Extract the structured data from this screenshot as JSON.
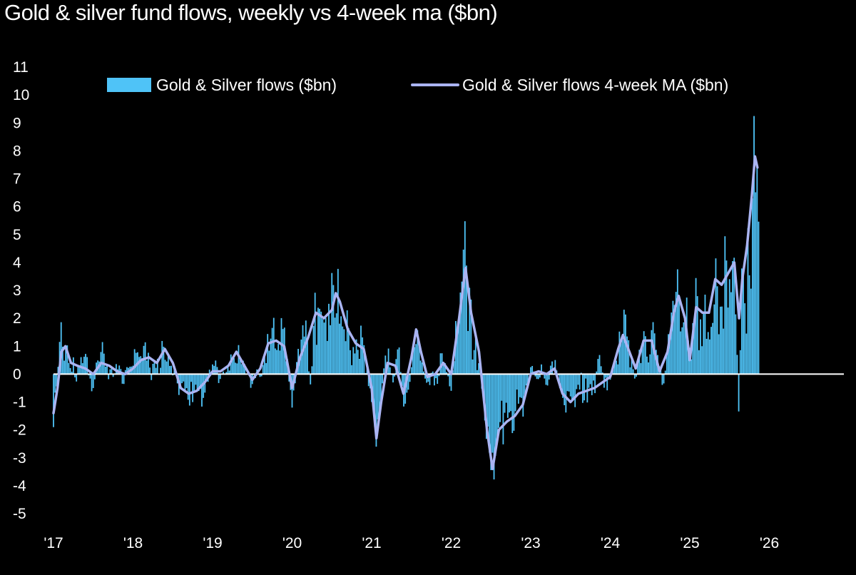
{
  "chart_data": {
    "type": "bar",
    "title": "Gold & silver fund flows, weekly vs 4-week ma ($bn)",
    "xlabel": "",
    "ylabel": "",
    "ylim": [
      -5,
      11
    ],
    "y_ticks": [
      11,
      10,
      9,
      8,
      7,
      6,
      5,
      4,
      3,
      2,
      1,
      0,
      -1,
      -2,
      -3,
      -4,
      -5
    ],
    "x_range": [
      2017.0,
      2027.0
    ],
    "x_ticks": [
      {
        "label": "'17",
        "value": 2017
      },
      {
        "label": "'18",
        "value": 2018
      },
      {
        "label": "'19",
        "value": 2019
      },
      {
        "label": "'20",
        "value": 2020
      },
      {
        "label": "'21",
        "value": 2021
      },
      {
        "label": "'22",
        "value": 2022
      },
      {
        "label": "'23",
        "value": 2023
      },
      {
        "label": "'24",
        "value": 2024
      },
      {
        "label": "'25",
        "value": 2025
      },
      {
        "label": "'26",
        "value": 2026
      }
    ],
    "legend_position": "top",
    "series": [
      {
        "name": "Gold & Silver flows ($bn)",
        "kind": "bar",
        "color": "#4fc3f7"
      },
      {
        "name": "Gold & Silver flows 4-week MA ($bn)",
        "kind": "line",
        "color": "#aab4f2"
      }
    ],
    "weekly_anchors": [
      [
        2017.0,
        -1.9
      ],
      [
        2017.03,
        -0.8
      ],
      [
        2017.07,
        0.9
      ],
      [
        2017.1,
        2.0
      ],
      [
        2017.13,
        0.4
      ],
      [
        2017.17,
        1.1
      ],
      [
        2017.21,
        0.2
      ],
      [
        2017.25,
        0.6
      ],
      [
        2017.29,
        -0.3
      ],
      [
        2017.33,
        0.3
      ],
      [
        2017.4,
        0.8
      ],
      [
        2017.45,
        -0.2
      ],
      [
        2017.5,
        -0.5
      ],
      [
        2017.55,
        0.4
      ],
      [
        2017.62,
        1.2
      ],
      [
        2017.68,
        0.2
      ],
      [
        2017.75,
        -0.1
      ],
      [
        2017.82,
        0.4
      ],
      [
        2017.88,
        -0.4
      ],
      [
        2017.95,
        0.3
      ],
      [
        2018.02,
        0.9
      ],
      [
        2018.08,
        0.6
      ],
      [
        2018.15,
        1.2
      ],
      [
        2018.22,
        0.1
      ],
      [
        2018.3,
        0.5
      ],
      [
        2018.38,
        1.0
      ],
      [
        2018.45,
        0.7
      ],
      [
        2018.52,
        0.2
      ],
      [
        2018.58,
        -0.8
      ],
      [
        2018.65,
        -0.6
      ],
      [
        2018.72,
        -1.2
      ],
      [
        2018.8,
        -0.5
      ],
      [
        2018.88,
        -0.9
      ],
      [
        2018.95,
        -0.2
      ],
      [
        2019.02,
        0.3
      ],
      [
        2019.1,
        -0.2
      ],
      [
        2019.18,
        0.1
      ],
      [
        2019.25,
        0.5
      ],
      [
        2019.32,
        1.1
      ],
      [
        2019.4,
        0.4
      ],
      [
        2019.48,
        -0.5
      ],
      [
        2019.55,
        0.2
      ],
      [
        2019.62,
        -0.1
      ],
      [
        2019.7,
        1.6
      ],
      [
        2019.76,
        2.2
      ],
      [
        2019.82,
        1.0
      ],
      [
        2019.88,
        1.7
      ],
      [
        2019.94,
        0.6
      ],
      [
        2020.0,
        -1.2
      ],
      [
        2020.06,
        0.5
      ],
      [
        2020.12,
        1.3
      ],
      [
        2020.18,
        2.0
      ],
      [
        2020.24,
        -0.8
      ],
      [
        2020.28,
        3.0
      ],
      [
        2020.34,
        2.4
      ],
      [
        2020.4,
        1.8
      ],
      [
        2020.46,
        2.5
      ],
      [
        2020.52,
        3.2
      ],
      [
        2020.58,
        3.8
      ],
      [
        2020.64,
        1.5
      ],
      [
        2020.7,
        2.4
      ],
      [
        2020.76,
        1.0
      ],
      [
        2020.82,
        0.8
      ],
      [
        2020.88,
        1.4
      ],
      [
        2020.94,
        0.3
      ],
      [
        2021.0,
        -1.0
      ],
      [
        2021.05,
        -2.8
      ],
      [
        2021.1,
        -1.5
      ],
      [
        2021.16,
        0.4
      ],
      [
        2021.22,
        1.0
      ],
      [
        2021.28,
        -0.3
      ],
      [
        2021.34,
        1.2
      ],
      [
        2021.4,
        -1.2
      ],
      [
        2021.46,
        -0.6
      ],
      [
        2021.52,
        1.0
      ],
      [
        2021.58,
        1.6
      ],
      [
        2021.64,
        0.3
      ],
      [
        2021.7,
        -0.4
      ],
      [
        2021.76,
        0.2
      ],
      [
        2021.82,
        -0.5
      ],
      [
        2021.88,
        0.8
      ],
      [
        2021.94,
        0.1
      ],
      [
        2022.0,
        -0.6
      ],
      [
        2022.06,
        2.0
      ],
      [
        2022.12,
        3.0
      ],
      [
        2022.18,
        5.8
      ],
      [
        2022.24,
        2.6
      ],
      [
        2022.3,
        1.6
      ],
      [
        2022.36,
        0.5
      ],
      [
        2022.42,
        -1.6
      ],
      [
        2022.48,
        -2.8
      ],
      [
        2022.54,
        -3.8
      ],
      [
        2022.6,
        -1.8
      ],
      [
        2022.66,
        -2.6
      ],
      [
        2022.72,
        -1.4
      ],
      [
        2022.78,
        -2.2
      ],
      [
        2022.84,
        -1.0
      ],
      [
        2022.9,
        -1.6
      ],
      [
        2022.96,
        -0.4
      ],
      [
        2023.02,
        0.3
      ],
      [
        2023.08,
        -0.2
      ],
      [
        2023.14,
        0.4
      ],
      [
        2023.2,
        -0.5
      ],
      [
        2023.26,
        0.5
      ],
      [
        2023.32,
        0.2
      ],
      [
        2023.38,
        -0.4
      ],
      [
        2023.44,
        -1.4
      ],
      [
        2023.5,
        -0.8
      ],
      [
        2023.56,
        -1.2
      ],
      [
        2023.62,
        -0.5
      ],
      [
        2023.68,
        -1.0
      ],
      [
        2023.74,
        -0.4
      ],
      [
        2023.8,
        -0.9
      ],
      [
        2023.86,
        0.8
      ],
      [
        2023.92,
        -0.5
      ],
      [
        2024.0,
        -0.2
      ],
      [
        2024.06,
        0.6
      ],
      [
        2024.12,
        1.6
      ],
      [
        2024.18,
        2.4
      ],
      [
        2024.24,
        1.0
      ],
      [
        2024.3,
        -0.3
      ],
      [
        2024.36,
        0.8
      ],
      [
        2024.42,
        1.6
      ],
      [
        2024.48,
        0.4
      ],
      [
        2024.54,
        1.9
      ],
      [
        2024.6,
        0.6
      ],
      [
        2024.66,
        -0.5
      ],
      [
        2024.72,
        1.0
      ],
      [
        2024.78,
        2.4
      ],
      [
        2024.84,
        4.0
      ],
      [
        2024.9,
        1.6
      ],
      [
        2024.96,
        2.8
      ],
      [
        2025.02,
        0.5
      ],
      [
        2025.08,
        3.6
      ],
      [
        2025.14,
        1.8
      ],
      [
        2025.2,
        3.0
      ],
      [
        2025.26,
        1.2
      ],
      [
        2025.32,
        4.4
      ],
      [
        2025.38,
        2.2
      ],
      [
        2025.44,
        5.0
      ],
      [
        2025.5,
        3.4
      ],
      [
        2025.56,
        4.2
      ],
      [
        2025.62,
        -1.8
      ],
      [
        2025.66,
        4.8
      ],
      [
        2025.7,
        2.0
      ],
      [
        2025.74,
        6.2
      ],
      [
        2025.78,
        5.0
      ],
      [
        2025.81,
        9.6
      ],
      [
        2025.84,
        8.0
      ],
      [
        2025.87,
        5.0
      ]
    ],
    "ma_anchors": [
      [
        2017.0,
        -1.4
      ],
      [
        2017.05,
        -0.5
      ],
      [
        2017.1,
        0.8
      ],
      [
        2017.15,
        1.0
      ],
      [
        2017.22,
        0.4
      ],
      [
        2017.3,
        0.3
      ],
      [
        2017.4,
        0.2
      ],
      [
        2017.5,
        0.0
      ],
      [
        2017.6,
        0.4
      ],
      [
        2017.7,
        0.3
      ],
      [
        2017.8,
        0.1
      ],
      [
        2017.9,
        0.0
      ],
      [
        2018.0,
        0.2
      ],
      [
        2018.1,
        0.5
      ],
      [
        2018.2,
        0.6
      ],
      [
        2018.3,
        0.4
      ],
      [
        2018.4,
        0.9
      ],
      [
        2018.5,
        0.4
      ],
      [
        2018.6,
        -0.5
      ],
      [
        2018.7,
        -0.7
      ],
      [
        2018.8,
        -0.6
      ],
      [
        2018.9,
        -0.3
      ],
      [
        2019.0,
        0.1
      ],
      [
        2019.1,
        0.1
      ],
      [
        2019.2,
        0.3
      ],
      [
        2019.3,
        0.8
      ],
      [
        2019.4,
        0.3
      ],
      [
        2019.5,
        -0.2
      ],
      [
        2019.6,
        0.2
      ],
      [
        2019.7,
        1.1
      ],
      [
        2019.8,
        1.2
      ],
      [
        2019.9,
        1.0
      ],
      [
        2020.0,
        -0.5
      ],
      [
        2020.1,
        0.6
      ],
      [
        2020.2,
        1.3
      ],
      [
        2020.3,
        2.2
      ],
      [
        2020.4,
        2.0
      ],
      [
        2020.5,
        2.3
      ],
      [
        2020.55,
        2.9
      ],
      [
        2020.6,
        2.6
      ],
      [
        2020.7,
        1.6
      ],
      [
        2020.8,
        1.1
      ],
      [
        2020.9,
        0.9
      ],
      [
        2021.0,
        -0.5
      ],
      [
        2021.06,
        -2.3
      ],
      [
        2021.12,
        -1.0
      ],
      [
        2021.2,
        0.4
      ],
      [
        2021.3,
        0.3
      ],
      [
        2021.4,
        -0.7
      ],
      [
        2021.5,
        0.6
      ],
      [
        2021.56,
        1.6
      ],
      [
        2021.62,
        0.8
      ],
      [
        2021.7,
        -0.1
      ],
      [
        2021.8,
        0.0
      ],
      [
        2021.9,
        0.4
      ],
      [
        2022.0,
        0.0
      ],
      [
        2022.1,
        2.0
      ],
      [
        2022.18,
        3.8
      ],
      [
        2022.25,
        2.2
      ],
      [
        2022.35,
        0.8
      ],
      [
        2022.45,
        -2.0
      ],
      [
        2022.52,
        -3.4
      ],
      [
        2022.6,
        -2.0
      ],
      [
        2022.7,
        -1.7
      ],
      [
        2022.8,
        -1.5
      ],
      [
        2022.9,
        -1.1
      ],
      [
        2023.0,
        0.0
      ],
      [
        2023.1,
        0.1
      ],
      [
        2023.2,
        0.0
      ],
      [
        2023.3,
        0.2
      ],
      [
        2023.4,
        -0.7
      ],
      [
        2023.5,
        -1.0
      ],
      [
        2023.6,
        -0.7
      ],
      [
        2023.7,
        -0.6
      ],
      [
        2023.8,
        -0.5
      ],
      [
        2023.9,
        -0.3
      ],
      [
        2024.0,
        -0.1
      ],
      [
        2024.1,
        0.9
      ],
      [
        2024.16,
        1.4
      ],
      [
        2024.24,
        0.8
      ],
      [
        2024.32,
        0.2
      ],
      [
        2024.42,
        1.2
      ],
      [
        2024.52,
        1.2
      ],
      [
        2024.62,
        0.1
      ],
      [
        2024.72,
        0.8
      ],
      [
        2024.8,
        2.2
      ],
      [
        2024.86,
        2.8
      ],
      [
        2024.94,
        2.0
      ],
      [
        2025.0,
        0.5
      ],
      [
        2025.08,
        2.4
      ],
      [
        2025.16,
        2.2
      ],
      [
        2025.24,
        2.2
      ],
      [
        2025.32,
        3.4
      ],
      [
        2025.4,
        3.2
      ],
      [
        2025.48,
        3.6
      ],
      [
        2025.56,
        4.0
      ],
      [
        2025.62,
        2.0
      ],
      [
        2025.66,
        3.4
      ],
      [
        2025.72,
        4.6
      ],
      [
        2025.78,
        6.4
      ],
      [
        2025.82,
        7.8
      ],
      [
        2025.85,
        7.4
      ]
    ]
  }
}
